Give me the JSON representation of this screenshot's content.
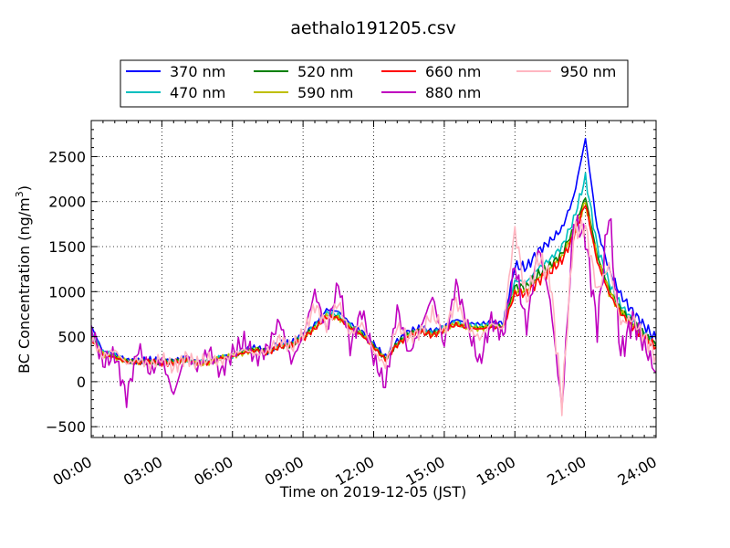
{
  "chart_data": {
    "type": "line",
    "title": "aethalo191205.csv",
    "xlabel": "Time on 2019-12-05 (JST)",
    "ylabel_main": "BC Concentration (ng/m",
    "ylabel_sup": "3",
    "ylabel_tail": ")",
    "xlim": [
      "00:00",
      "24:00"
    ],
    "ylim": [
      -620,
      2900
    ],
    "x_ticks": [
      "00:00",
      "03:00",
      "06:00",
      "09:00",
      "12:00",
      "15:00",
      "18:00",
      "21:00",
      "24:00"
    ],
    "y_ticks": [
      -500,
      0,
      500,
      1000,
      1500,
      2000,
      2500
    ],
    "grid": true,
    "legend_position": "top-center",
    "x_hours": [
      0,
      0.5,
      1,
      1.5,
      2,
      2.5,
      3,
      3.5,
      4,
      4.5,
      5,
      5.5,
      6,
      6.5,
      7,
      7.5,
      8,
      8.5,
      9,
      9.5,
      10,
      10.5,
      11,
      11.5,
      12,
      12.5,
      13,
      13.5,
      14,
      14.5,
      15,
      15.5,
      16,
      16.5,
      17,
      17.5,
      18,
      18.5,
      19,
      19.5,
      20,
      20.5,
      21,
      21.5,
      22,
      22.5,
      23,
      23.5,
      24
    ],
    "series": [
      {
        "name": "370 nm",
        "color": "#0000ff",
        "values": [
          620,
          330,
          300,
          240,
          230,
          240,
          230,
          230,
          260,
          220,
          230,
          280,
          300,
          350,
          380,
          340,
          420,
          430,
          520,
          640,
          800,
          780,
          650,
          560,
          420,
          270,
          450,
          560,
          600,
          560,
          620,
          690,
          650,
          640,
          660,
          650,
          1280,
          1270,
          1450,
          1560,
          1700,
          2050,
          2700,
          1700,
          1250,
          960,
          780,
          620,
          470
        ]
      },
      {
        "name": "470 nm",
        "color": "#00bfbf",
        "values": [
          540,
          320,
          290,
          230,
          220,
          230,
          220,
          220,
          250,
          210,
          220,
          270,
          290,
          340,
          370,
          330,
          410,
          420,
          510,
          620,
          760,
          740,
          620,
          540,
          400,
          260,
          430,
          540,
          580,
          540,
          600,
          660,
          620,
          610,
          630,
          620,
          1120,
          1110,
          1260,
          1360,
          1500,
          1800,
          2270,
          1500,
          1100,
          850,
          690,
          550,
          420
        ]
      },
      {
        "name": "520 nm",
        "color": "#008000",
        "values": [
          500,
          310,
          280,
          225,
          215,
          225,
          215,
          215,
          245,
          205,
          215,
          265,
          285,
          330,
          360,
          325,
          400,
          410,
          495,
          600,
          740,
          720,
          610,
          530,
          390,
          255,
          420,
          530,
          570,
          530,
          590,
          650,
          610,
          600,
          620,
          610,
          1050,
          1050,
          1190,
          1290,
          1420,
          1700,
          2050,
          1400,
          1030,
          800,
          650,
          520,
          400
        ]
      },
      {
        "name": "590 nm",
        "color": "#bfbf00",
        "values": [
          480,
          305,
          275,
          220,
          212,
          222,
          212,
          212,
          242,
          202,
          212,
          262,
          282,
          325,
          355,
          320,
          395,
          405,
          488,
          595,
          730,
          712,
          602,
          522,
          385,
          250,
          415,
          522,
          562,
          522,
          582,
          642,
          602,
          592,
          612,
          602,
          1010,
          1010,
          1150,
          1250,
          1380,
          1650,
          1990,
          1360,
          1000,
          780,
          630,
          505,
          390
        ]
      },
      {
        "name": "660 nm",
        "color": "#ff0000",
        "values": [
          460,
          300,
          270,
          218,
          210,
          220,
          210,
          210,
          240,
          200,
          210,
          260,
          280,
          320,
          350,
          318,
          390,
          400,
          480,
          590,
          720,
          705,
          595,
          515,
          380,
          245,
          410,
          515,
          555,
          515,
          575,
          635,
          595,
          585,
          605,
          595,
          980,
          980,
          1120,
          1220,
          1350,
          1620,
          1980,
          1330,
          980,
          760,
          610,
          490,
          380
        ]
      },
      {
        "name": "880 nm",
        "color": "#bf00bf",
        "values": [
          600,
          200,
          300,
          -180,
          380,
          100,
          250,
          -150,
          300,
          150,
          350,
          100,
          320,
          450,
          250,
          380,
          680,
          220,
          500,
          1000,
          560,
          1100,
          380,
          800,
          260,
          -50,
          820,
          300,
          600,
          950,
          400,
          1100,
          600,
          200,
          700,
          500,
          1300,
          600,
          1500,
          900,
          -300,
          1800,
          1600,
          600,
          1900,
          300,
          700,
          400,
          100
        ]
      },
      {
        "name": "950 nm",
        "color": "#ffb6c1",
        "values": [
          480,
          280,
          350,
          200,
          250,
          180,
          260,
          150,
          280,
          200,
          260,
          220,
          300,
          360,
          300,
          340,
          480,
          380,
          520,
          850,
          620,
          880,
          520,
          650,
          330,
          180,
          620,
          480,
          560,
          760,
          550,
          900,
          600,
          480,
          650,
          580,
          1700,
          900,
          1380,
          1150,
          -250,
          1650,
          1720,
          1000,
          1300,
          650,
          700,
          500,
          300
        ]
      }
    ]
  }
}
